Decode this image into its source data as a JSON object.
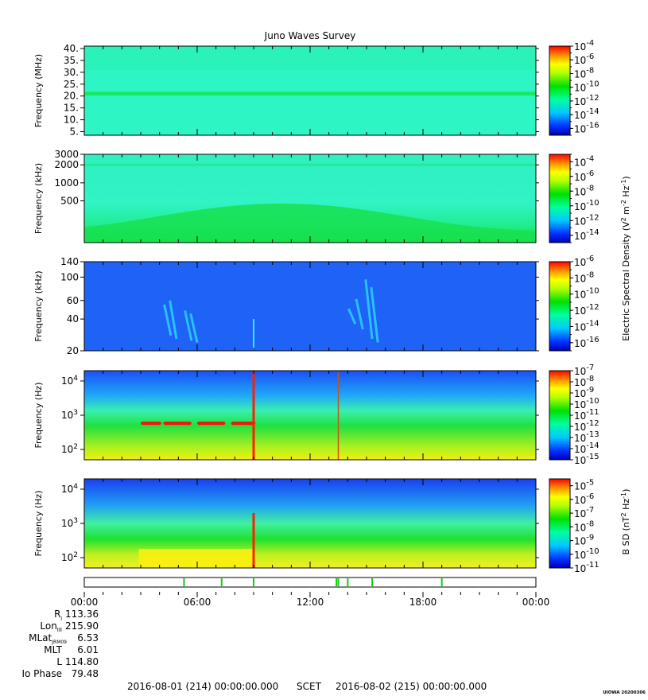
{
  "chart_data": [
    {
      "type": "heatmap",
      "title": "Juno Waves Survey",
      "ylabel": "Frequency (MHz)",
      "yscale": "linear",
      "ylim": [
        3.5,
        41
      ],
      "yticks": [
        "40.",
        "35.",
        "30.",
        "25.",
        "20.",
        "15.",
        "10.",
        "5."
      ],
      "ytick_values": [
        40,
        35,
        30,
        25,
        20,
        15,
        10,
        5
      ],
      "colorbar": {
        "scale": "log",
        "range": [
          -17,
          -4
        ],
        "labels": [
          "10-4",
          "10-6",
          "10-8",
          "10-10",
          "10-12",
          "10-14",
          "10-16"
        ],
        "exponents": [
          -4,
          -6,
          -8,
          -10,
          -12,
          -14,
          -16
        ]
      }
    },
    {
      "type": "heatmap",
      "ylabel": "Frequency (kHz)",
      "yscale": "log",
      "ylim": [
        100,
        3000
      ],
      "yticks": [
        "3000",
        "2000",
        "1000",
        "500"
      ],
      "ytick_values": [
        3000,
        2000,
        1000,
        500
      ],
      "colorbar": {
        "scale": "log",
        "range": [
          -15,
          -3
        ],
        "labels": [
          "10-4",
          "10-6",
          "10-8",
          "10-10",
          "10-12",
          "10-14"
        ],
        "exponents": [
          -4,
          -6,
          -8,
          -10,
          -12,
          -14
        ]
      }
    },
    {
      "type": "heatmap",
      "ylabel": "Frequency (kHz)",
      "yscale": "log",
      "ylim": [
        20,
        140
      ],
      "yticks": [
        "140",
        "100",
        "60",
        "40",
        "20"
      ],
      "ytick_values": [
        140,
        100,
        60,
        40,
        20
      ],
      "colorbar": {
        "scale": "log",
        "range": [
          -17,
          -6
        ],
        "labels": [
          "10-6",
          "10-8",
          "10-10",
          "10-12",
          "10-14",
          "10-16"
        ],
        "exponents": [
          -6,
          -8,
          -10,
          -12,
          -14,
          -16
        ]
      }
    },
    {
      "type": "heatmap",
      "ylabel": "Frequency (Hz)",
      "yscale": "log",
      "ylim": [
        50,
        20000
      ],
      "yticks": [
        "10 4",
        "10 3",
        "10 2"
      ],
      "ytick_values": [
        10000,
        1000,
        100
      ],
      "colorbar": {
        "scale": "log",
        "range": [
          -15,
          -7
        ],
        "labels": [
          "10-7",
          "10-8",
          "10-9",
          "10-10",
          "10-11",
          "10-12",
          "10-13",
          "10-14",
          "10-15"
        ],
        "exponents": [
          -7,
          -8,
          -9,
          -10,
          -11,
          -12,
          -13,
          -14,
          -15
        ]
      }
    },
    {
      "type": "heatmap",
      "ylabel": "Frequency (Hz)",
      "yscale": "log",
      "ylim": [
        50,
        20000
      ],
      "yticks": [
        "10 4",
        "10 3",
        "10 2"
      ],
      "ytick_values": [
        10000,
        1000,
        100
      ],
      "colorbar": {
        "scale": "log",
        "range": [
          -11,
          -4.5
        ],
        "labels": [
          "10-5",
          "10-6",
          "10-7",
          "10-8",
          "10-9",
          "10-10",
          "10-11"
        ],
        "exponents": [
          -5,
          -6,
          -7,
          -8,
          -9,
          -10,
          -11
        ]
      }
    }
  ],
  "colorbar_labels": {
    "electric": "Electric Spectral Density (V2 m-2 Hz-1)",
    "magnetic": "B SD (nT2 Hz-1)"
  },
  "xaxis": {
    "ticks": [
      "00:00",
      "06:00",
      "12:00",
      "18:00",
      "00:00"
    ],
    "tick_hours": [
      0,
      6,
      12,
      18,
      24
    ],
    "range_hours": [
      0,
      24
    ]
  },
  "mode_strip": {
    "event_hours": [
      5.3,
      7.3,
      9.0,
      13.4,
      13.5,
      14.0,
      15.3,
      19.0
    ]
  },
  "ephemeris": [
    {
      "label": "RJ",
      "sub": "J",
      "values": [
        "113.36"
      ]
    },
    {
      "label": "LonIII",
      "sub": "III",
      "values": [
        "215.90"
      ]
    },
    {
      "label": "MLatJRM09",
      "sub": "JRM09",
      "values": [
        "6.53"
      ]
    },
    {
      "label": "MLT",
      "sub": "",
      "values": [
        "6.01"
      ]
    },
    {
      "label": "L",
      "sub": "",
      "values": [
        "114.80"
      ]
    },
    {
      "label": "Io Phase",
      "sub": "",
      "values": [
        "79.48"
      ]
    }
  ],
  "footer": {
    "start": "2016-08-01 (214) 00:00:00.000",
    "scet": "SCET",
    "end": "2016-08-02 (215) 00:00:00.000",
    "stamp": "UIOWA 20200306"
  },
  "colors": {
    "background": "#ffffff",
    "axis": "#000000"
  }
}
